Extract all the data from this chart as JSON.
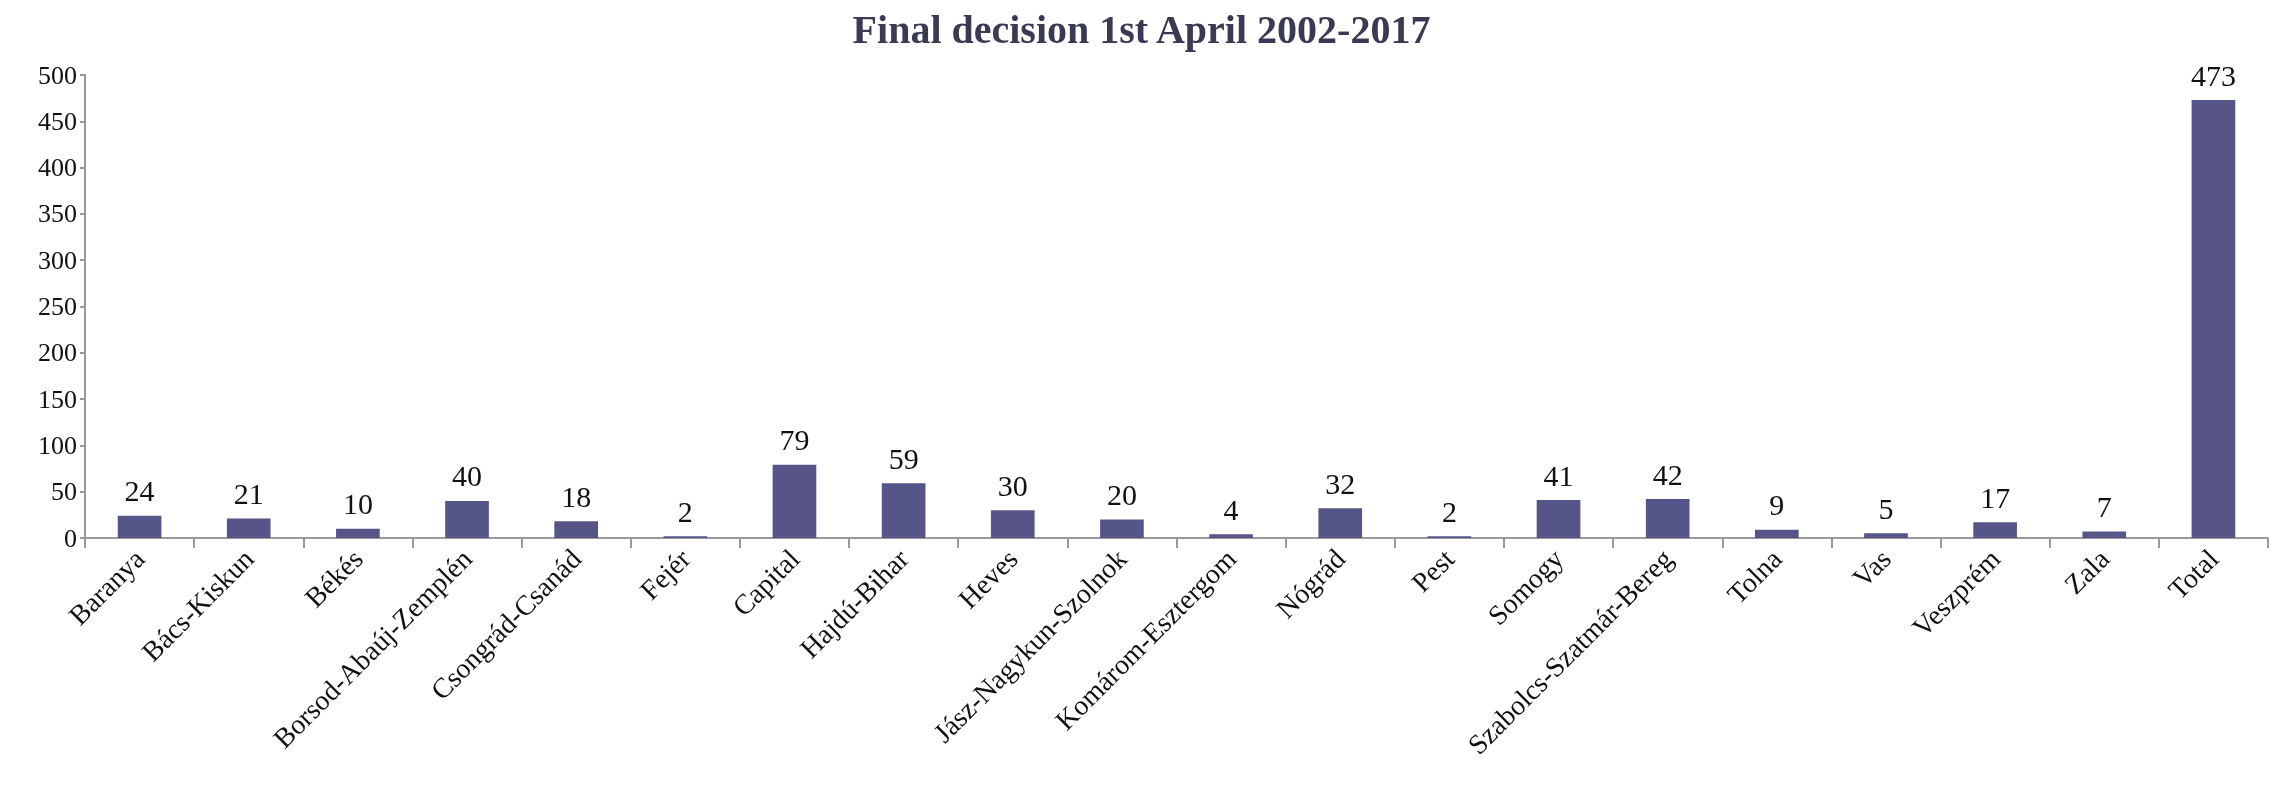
{
  "chart_data": {
    "type": "bar",
    "title": "Final decision 1st April 2002-2017",
    "categories": [
      "Baranya",
      "Bács-Kiskun",
      "Békés",
      "Borsod-Abaúj-Zemplén",
      "Csongrád-Csanád",
      "Fejér",
      "Capital",
      "Hajdú-Bihar",
      "Heves",
      "Jász-Nagykun-Szolnok",
      "Komárom-Esztergom",
      "Nógrád",
      "Pest",
      "Somogy",
      "Szabolcs-Szatmár-Bereg",
      "Tolna",
      "Vas",
      "Veszprém",
      "Zala",
      "Total"
    ],
    "values": [
      24,
      21,
      10,
      40,
      18,
      2,
      79,
      59,
      30,
      20,
      4,
      32,
      2,
      41,
      42,
      9,
      5,
      17,
      7,
      473
    ],
    "color": "#55558a",
    "ylim": [
      0,
      500
    ],
    "yticks": [
      0,
      50,
      100,
      150,
      200,
      250,
      300,
      350,
      400,
      450,
      500
    ],
    "grid": false,
    "data_labels": true
  }
}
